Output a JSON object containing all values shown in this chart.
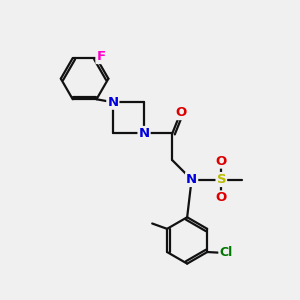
{
  "background_color": "#f0f0f0",
  "bond_color": "#111111",
  "bond_lw": 1.6,
  "double_sep": 0.09,
  "colors": {
    "F": "#ff00cc",
    "N": "#0000dd",
    "O": "#dd0000",
    "S": "#bbbb00",
    "Cl": "#007700"
  },
  "fs": 9.5,
  "figsize": [
    3.0,
    3.0
  ],
  "dpi": 100,
  "xlim": [
    0,
    10
  ],
  "ylim": [
    0,
    10
  ]
}
